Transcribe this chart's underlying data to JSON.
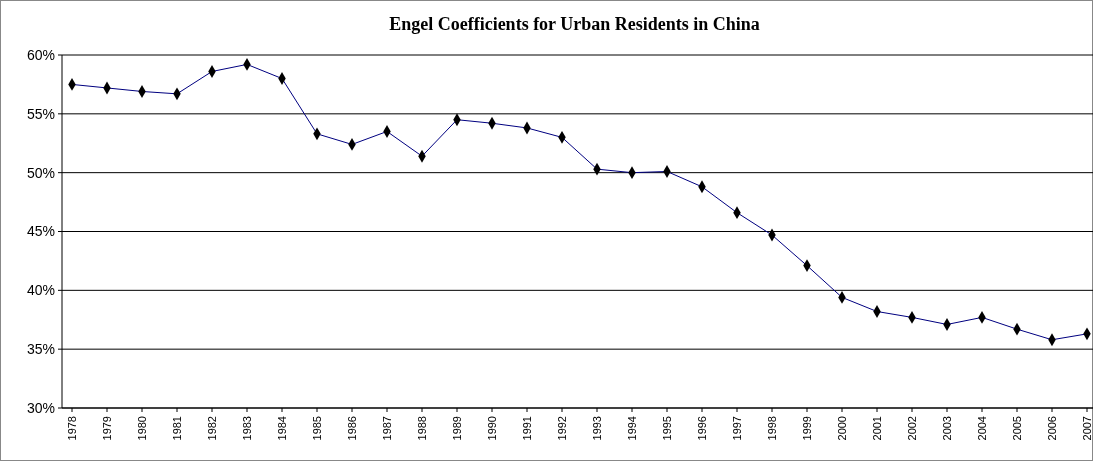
{
  "chart_data": {
    "type": "line",
    "title": "Engel Coefficients for Urban Residents in China",
    "categories": [
      "1978",
      "1979",
      "1980",
      "1981",
      "1982",
      "1983",
      "1984",
      "1985",
      "1986",
      "1987",
      "1988",
      "1989",
      "1990",
      "1991",
      "1992",
      "1993",
      "1994",
      "1995",
      "1996",
      "1997",
      "1998",
      "1999",
      "2000",
      "2001",
      "2002",
      "2003",
      "2004",
      "2005",
      "2006",
      "2007"
    ],
    "series": [
      {
        "color": "#000080",
        "values": [
          57.5,
          57.2,
          56.9,
          56.7,
          58.6,
          59.2,
          58.0,
          53.3,
          52.4,
          53.5,
          51.4,
          54.5,
          54.2,
          53.8,
          53.0,
          50.3,
          50.0,
          50.1,
          48.8,
          46.6,
          44.7,
          42.1,
          39.4,
          38.2,
          37.7,
          37.1,
          37.7,
          36.7,
          35.8,
          36.3
        ]
      }
    ],
    "ylim": [
      30,
      60
    ],
    "yticks": [
      {
        "value": 30,
        "label": "30%"
      },
      {
        "value": 35,
        "label": "35%"
      },
      {
        "value": 40,
        "label": "40%"
      },
      {
        "value": 45,
        "label": "45%"
      },
      {
        "value": 50,
        "label": "50%"
      },
      {
        "value": 55,
        "label": "55%"
      },
      {
        "value": 60,
        "label": "60%"
      }
    ],
    "grid": "y",
    "marker": "diamond"
  }
}
